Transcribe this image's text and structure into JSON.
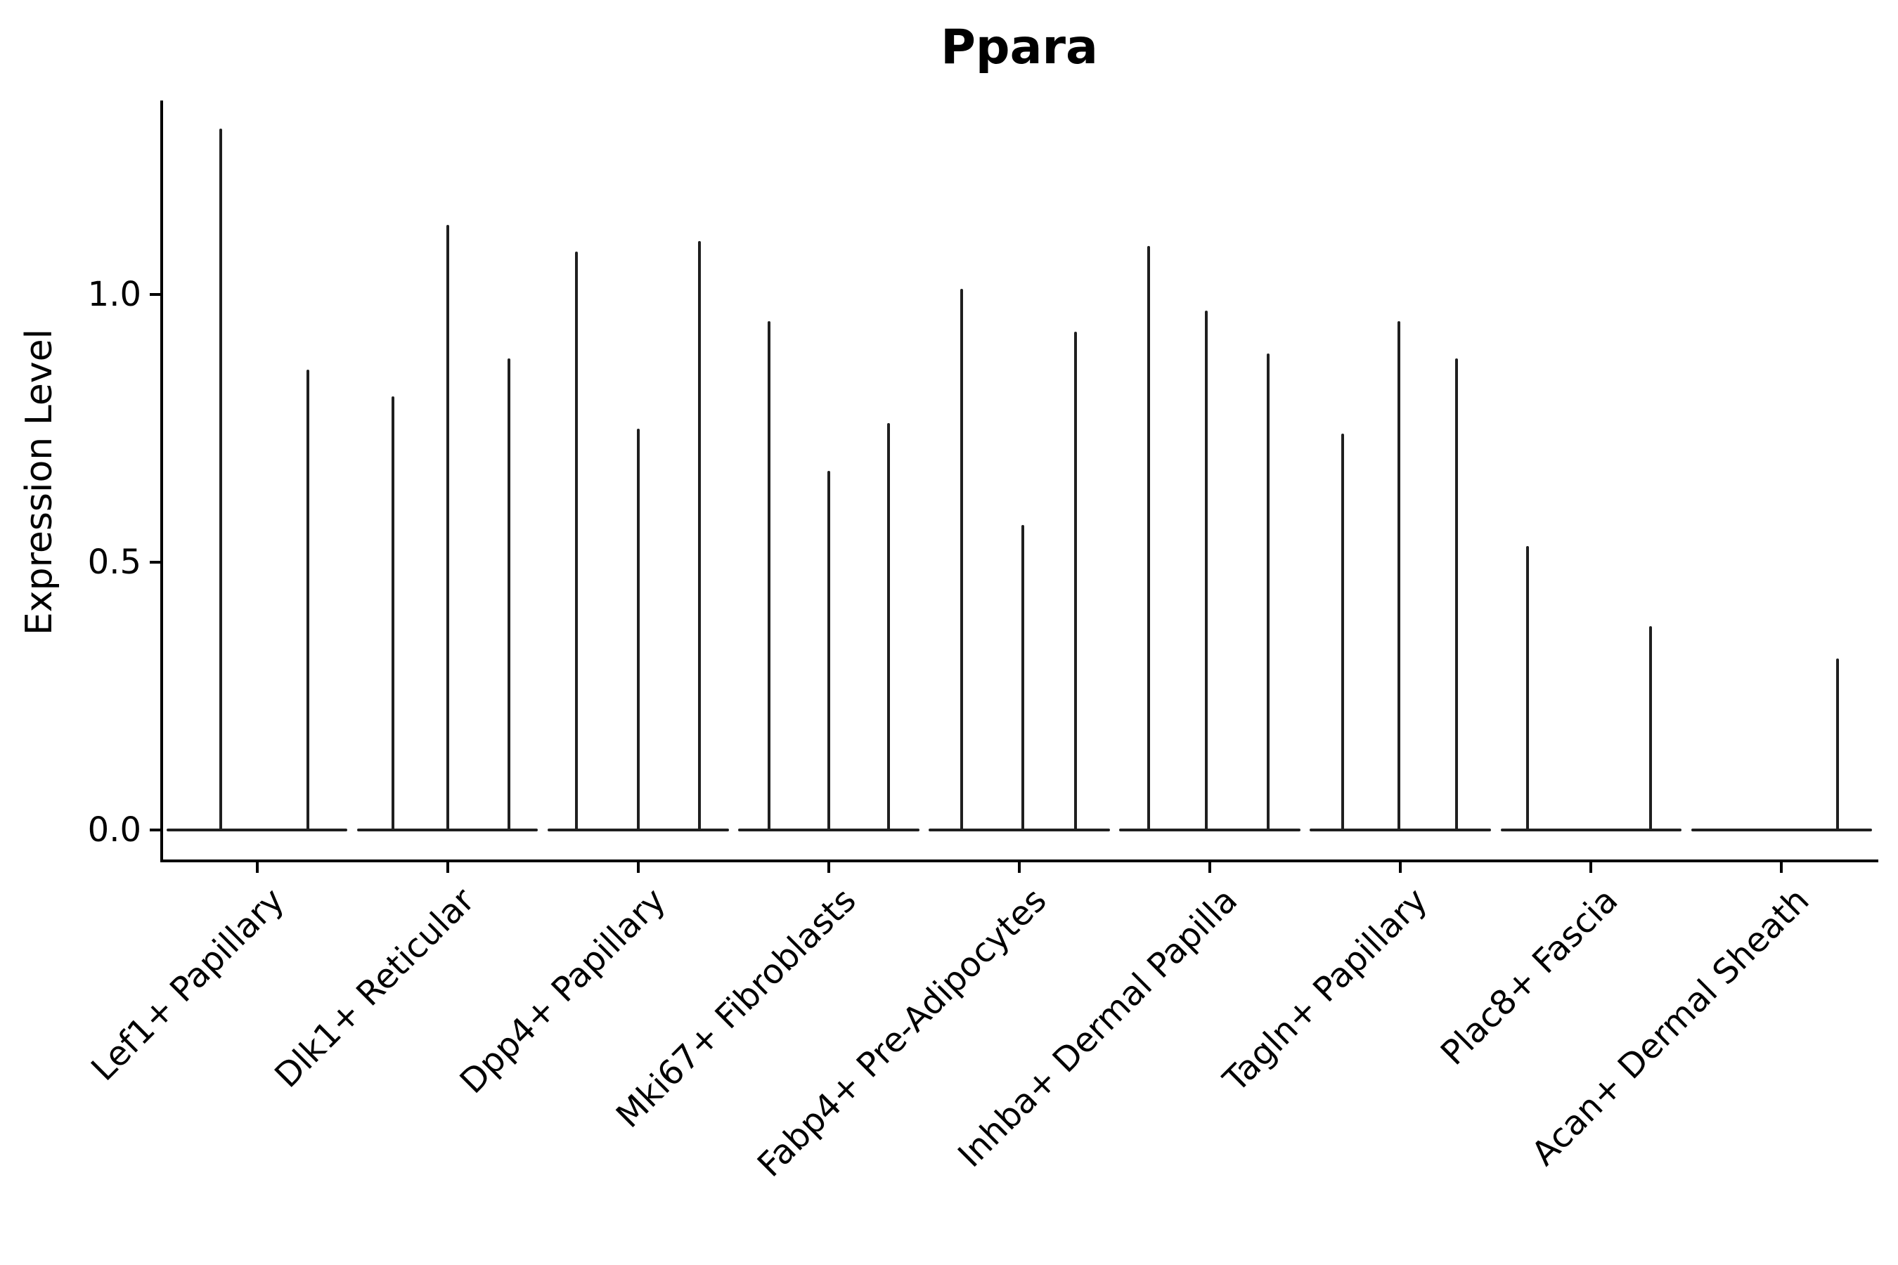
{
  "chart_data": {
    "type": "violin",
    "title": "Ppara",
    "ylabel": "Expression Level",
    "xlabel": "",
    "yticks": [
      0.0,
      0.5,
      1.0
    ],
    "ytick_labels": [
      "0.0",
      "0.5",
      "1.0"
    ],
    "ylim": [
      -0.055,
      1.36
    ],
    "baseline_value": 0.0,
    "legend": "none",
    "grid": false,
    "spike_color": "#1f1f1f",
    "categories": [
      "Lef1+ Papillary",
      "Dlk1+ Reticular",
      "Dpp4+ Papillary",
      "Mki67+ Fibroblasts",
      "Fabp4+ Pre-Adipocytes",
      "Inhba+ Dermal Papilla",
      "Tagln+ Papillary",
      "Plac8+ Fascia",
      "Acan+ Dermal Sheath"
    ],
    "groups": [
      {
        "category": "Lef1+ Papillary",
        "violins": [
          {
            "pos": 0.3,
            "max": 1.31
          },
          {
            "pos": 0.78,
            "max": 0.86
          }
        ]
      },
      {
        "category": "Dlk1+ Reticular",
        "violins": [
          {
            "pos": 0.2,
            "max": 0.81
          },
          {
            "pos": 0.5,
            "max": 1.13
          },
          {
            "pos": 0.84,
            "max": 0.88
          }
        ]
      },
      {
        "category": "Dpp4+ Papillary",
        "violins": [
          {
            "pos": 0.16,
            "max": 1.08
          },
          {
            "pos": 0.5,
            "max": 0.75
          },
          {
            "pos": 0.84,
            "max": 1.1
          }
        ]
      },
      {
        "category": "Mki67+ Fibroblasts",
        "violins": [
          {
            "pos": 0.17,
            "max": 0.95
          },
          {
            "pos": 0.5,
            "max": 0.67
          },
          {
            "pos": 0.83,
            "max": 0.76
          }
        ]
      },
      {
        "category": "Fabp4+ Pre-Adipocytes",
        "violins": [
          {
            "pos": 0.18,
            "max": 1.01
          },
          {
            "pos": 0.52,
            "max": 0.57
          },
          {
            "pos": 0.81,
            "max": 0.93
          }
        ]
      },
      {
        "category": "Inhba+ Dermal Papilla",
        "violins": [
          {
            "pos": 0.16,
            "max": 1.09
          },
          {
            "pos": 0.48,
            "max": 0.97
          },
          {
            "pos": 0.82,
            "max": 0.89
          }
        ]
      },
      {
        "category": "Tagln+ Papillary",
        "violins": [
          {
            "pos": 0.18,
            "max": 0.74
          },
          {
            "pos": 0.49,
            "max": 0.95
          },
          {
            "pos": 0.81,
            "max": 0.88
          }
        ]
      },
      {
        "category": "Plac8+ Fascia",
        "violins": [
          {
            "pos": 0.15,
            "max": 0.53
          },
          {
            "pos": 0.83,
            "max": 0.38
          }
        ]
      },
      {
        "category": "Acan+ Dermal Sheath",
        "violins": [
          {
            "pos": 0.81,
            "max": 0.32
          }
        ]
      }
    ]
  }
}
